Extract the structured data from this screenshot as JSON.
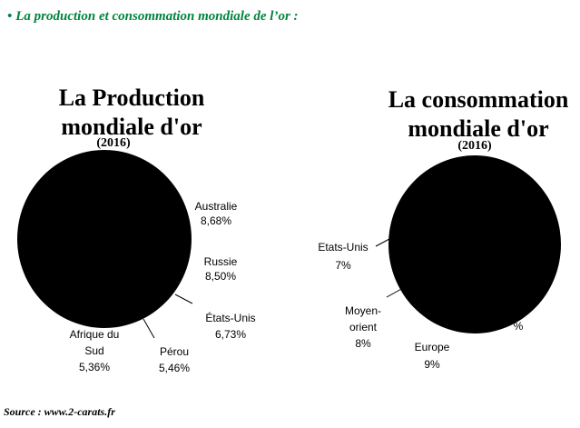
{
  "heading": {
    "bullet": "•",
    "text": "La production et consommation mondiale de l’or :",
    "color": "#00843d"
  },
  "source": "Source : www.2-carats.fr",
  "chart_data": [
    {
      "type": "pie",
      "title_line1": "La Production",
      "title_line2": "mondiale d'or",
      "subtitle": "(2016)",
      "fill_color": "#000000",
      "visible_labels": [
        {
          "name": "Australie",
          "pct": "8,68%"
        },
        {
          "name": "Russie",
          "pct": "8,50%"
        },
        {
          "name": "États-Unis",
          "pct": "6,73%"
        },
        {
          "name": "Pérou",
          "pct": "5,46%"
        },
        {
          "name_line1": "Afrique du",
          "name_line2": "Sud",
          "pct": "5,36%"
        }
      ]
    },
    {
      "type": "pie",
      "title_line1": "La consommation",
      "title_line2": "mondiale d'or",
      "subtitle": "(2016)",
      "fill_color": "#000000",
      "visible_labels": [
        {
          "name": "Etats-Unis",
          "pct": "7%"
        },
        {
          "name_line1": "Moyen-",
          "name_line2": "orient",
          "pct": "8%"
        },
        {
          "name": "Europe",
          "pct": "9%"
        },
        {
          "name": "",
          "pct": "%"
        }
      ]
    }
  ]
}
